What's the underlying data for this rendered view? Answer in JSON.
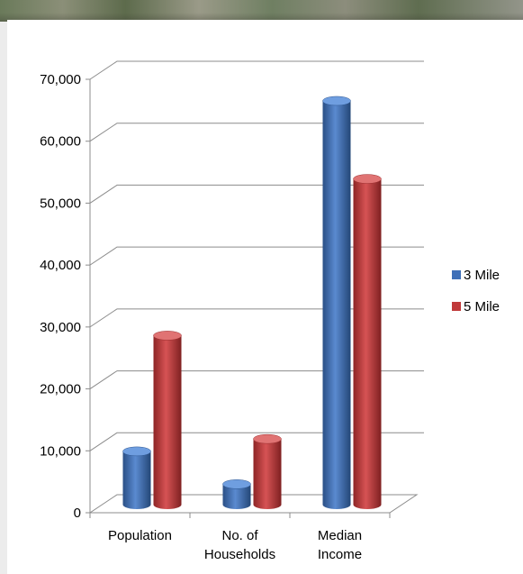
{
  "chart_data": {
    "type": "bar",
    "title": "",
    "xlabel": "",
    "ylabel": "",
    "categories": [
      [
        "Population"
      ],
      [
        "No. of",
        "Households"
      ],
      [
        "Median",
        "Income"
      ]
    ],
    "series": [
      {
        "name": "3 Mile",
        "color": "#3f70b8",
        "values": [
          8600,
          3300,
          65200
        ]
      },
      {
        "name": "5 Mile",
        "color": "#c0393a",
        "values": [
          27300,
          10600,
          52600
        ]
      }
    ],
    "ylim": [
      0,
      70000
    ],
    "yticks": [
      "0",
      "10,000",
      "20,000",
      "30,000",
      "40,000",
      "50,000",
      "60,000",
      "70,000"
    ],
    "grid": true,
    "legend_position": "right",
    "style": "3d-cylinder"
  }
}
